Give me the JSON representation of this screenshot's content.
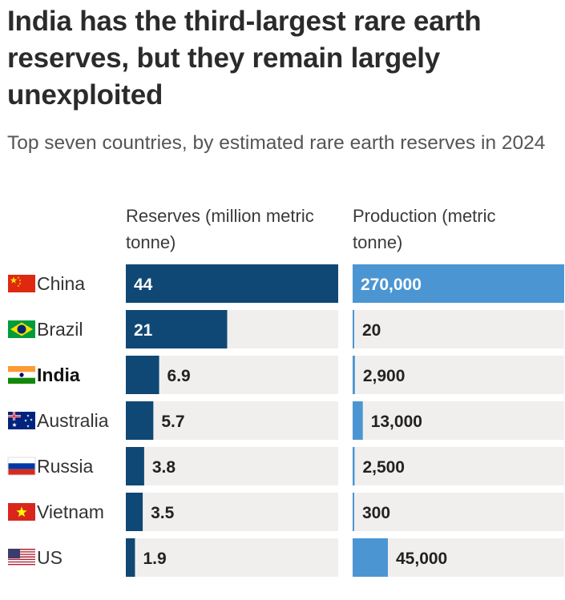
{
  "header": {
    "title": "India has the third-largest rare earth reserves, but they remain largely unexploited",
    "subtitle": "Top seven countries, by estimated rare earth reserves in 2024"
  },
  "colors": {
    "reserves_bar": "#0f4875",
    "production_bar": "#4b96d2",
    "track": "#f1efee",
    "label_on_bar": "#ffffff",
    "label_off_bar": "#222222"
  },
  "chart_data": {
    "type": "bar",
    "title": "India has the third-largest rare earth reserves, but they remain largely unexploited",
    "subtitle": "Top seven countries, by estimated rare earth reserves in 2024",
    "categories": [
      "China",
      "Brazil",
      "India",
      "Australia",
      "Russia",
      "Vietnam",
      "US"
    ],
    "highlighted_category": "India",
    "series": [
      {
        "name": "Reserves (million metric tonne)",
        "values": [
          44,
          21,
          6.9,
          5.7,
          3.8,
          3.5,
          1.9
        ],
        "value_labels": [
          "44",
          "21",
          "6.9",
          "5.7",
          "3.8",
          "3.5",
          "1.9"
        ],
        "max": 44
      },
      {
        "name": "Production (metric tonne)",
        "values": [
          270000,
          20,
          2900,
          13000,
          2500,
          300,
          45000
        ],
        "value_labels": [
          "270,000",
          "20",
          "2,900",
          "13,000",
          "2,500",
          "300",
          "45,000"
        ],
        "max": 270000
      }
    ],
    "orientation": "horizontal",
    "legend": "none",
    "grid": false
  }
}
